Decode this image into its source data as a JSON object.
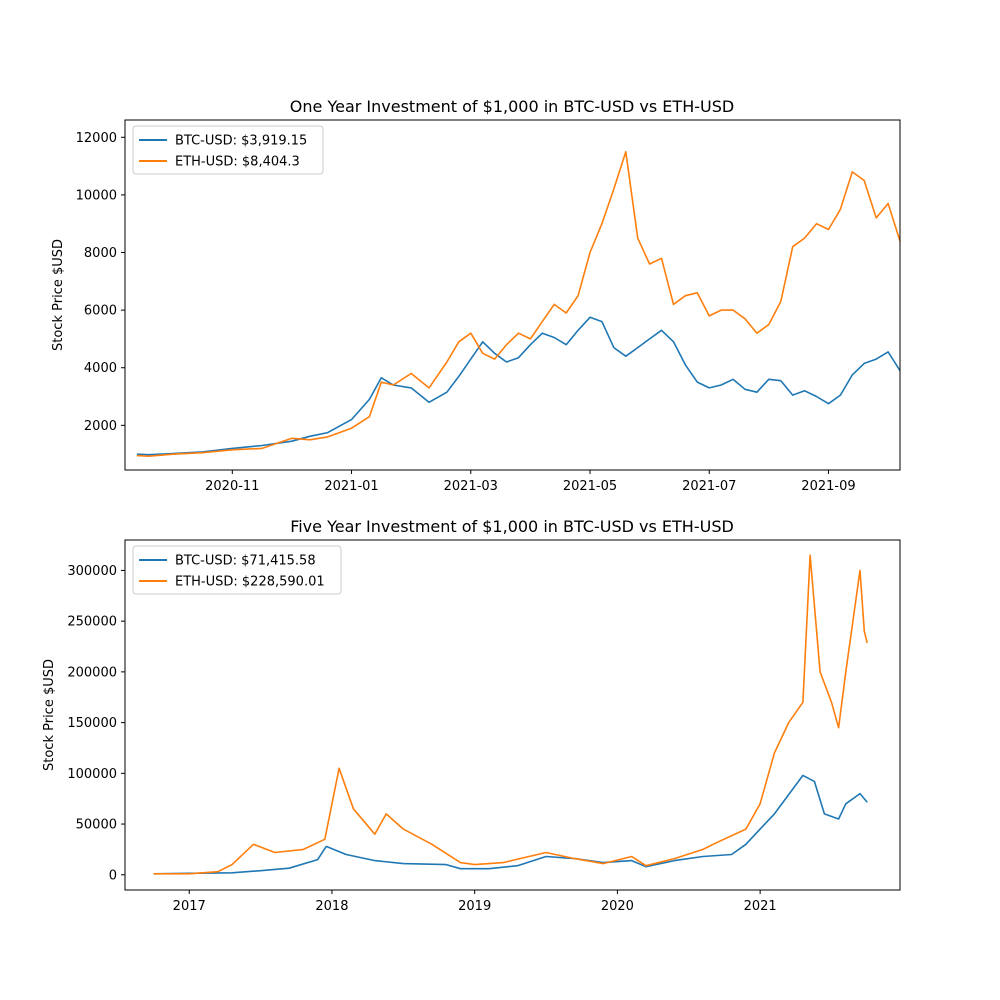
{
  "chart_data": [
    {
      "type": "line",
      "title": "One Year Investment of $1,000 in BTC-USD vs ETH-USD",
      "xlabel": "",
      "ylabel": "Stock Price $USD",
      "x_unit": "months since 2020-10-01",
      "xlim": [
        -0.8,
        12.2
      ],
      "ylim": [
        450,
        12600
      ],
      "grid": false,
      "legend": "top-left",
      "x_ticks": [
        {
          "value": 1,
          "label": "2020-11"
        },
        {
          "value": 3,
          "label": "2021-01"
        },
        {
          "value": 5,
          "label": "2021-03"
        },
        {
          "value": 7,
          "label": "2021-05"
        },
        {
          "value": 9,
          "label": "2021-07"
        },
        {
          "value": 11,
          "label": "2021-09"
        }
      ],
      "y_ticks": [
        {
          "value": 2000,
          "label": "2000"
        },
        {
          "value": 4000,
          "label": "4000"
        },
        {
          "value": 6000,
          "label": "6000"
        },
        {
          "value": 8000,
          "label": "8000"
        },
        {
          "value": 10000,
          "label": "10000"
        },
        {
          "value": 12000,
          "label": "12000"
        }
      ],
      "series": [
        {
          "name": "BTC-USD",
          "legend_label": "BTC-USD: $3,919.15",
          "color": "#1f77b4",
          "points": [
            [
              -0.6,
              1000
            ],
            [
              -0.4,
              980
            ],
            [
              0,
              1020
            ],
            [
              0.5,
              1080
            ],
            [
              1,
              1200
            ],
            [
              1.5,
              1300
            ],
            [
              2,
              1450
            ],
            [
              2.3,
              1620
            ],
            [
              2.6,
              1750
            ],
            [
              3,
              2200
            ],
            [
              3.3,
              2900
            ],
            [
              3.5,
              3650
            ],
            [
              3.7,
              3400
            ],
            [
              4,
              3300
            ],
            [
              4.3,
              2800
            ],
            [
              4.6,
              3150
            ],
            [
              4.8,
              3700
            ],
            [
              5,
              4300
            ],
            [
              5.2,
              4900
            ],
            [
              5.4,
              4500
            ],
            [
              5.6,
              4200
            ],
            [
              5.8,
              4350
            ],
            [
              6,
              4800
            ],
            [
              6.2,
              5200
            ],
            [
              6.4,
              5050
            ],
            [
              6.6,
              4800
            ],
            [
              6.8,
              5300
            ],
            [
              7,
              5750
            ],
            [
              7.2,
              5600
            ],
            [
              7.4,
              4700
            ],
            [
              7.6,
              4400
            ],
            [
              7.8,
              4700
            ],
            [
              8,
              5000
            ],
            [
              8.2,
              5300
            ],
            [
              8.4,
              4900
            ],
            [
              8.6,
              4100
            ],
            [
              8.8,
              3500
            ],
            [
              9,
              3300
            ],
            [
              9.2,
              3400
            ],
            [
              9.4,
              3600
            ],
            [
              9.6,
              3250
            ],
            [
              9.8,
              3150
            ],
            [
              10,
              3600
            ],
            [
              10.2,
              3550
            ],
            [
              10.4,
              3050
            ],
            [
              10.6,
              3200
            ],
            [
              10.8,
              3000
            ],
            [
              11,
              2750
            ],
            [
              11.2,
              3050
            ],
            [
              11.4,
              3750
            ],
            [
              11.6,
              4150
            ],
            [
              11.8,
              4300
            ],
            [
              12,
              4550
            ],
            [
              12.2,
              3900
            ],
            [
              12.4,
              3700
            ],
            [
              12.6,
              3919
            ]
          ]
        },
        {
          "name": "ETH-USD",
          "legend_label": "ETH-USD: $8,404.3",
          "color": "#ff7f0e",
          "points": [
            [
              -0.6,
              950
            ],
            [
              -0.4,
              930
            ],
            [
              0,
              1000
            ],
            [
              0.5,
              1050
            ],
            [
              1,
              1150
            ],
            [
              1.5,
              1200
            ],
            [
              2,
              1550
            ],
            [
              2.3,
              1500
            ],
            [
              2.6,
              1600
            ],
            [
              3,
              1900
            ],
            [
              3.3,
              2300
            ],
            [
              3.5,
              3500
            ],
            [
              3.7,
              3400
            ],
            [
              4,
              3800
            ],
            [
              4.3,
              3300
            ],
            [
              4.6,
              4200
            ],
            [
              4.8,
              4900
            ],
            [
              5,
              5200
            ],
            [
              5.2,
              4500
            ],
            [
              5.4,
              4300
            ],
            [
              5.6,
              4800
            ],
            [
              5.8,
              5200
            ],
            [
              6,
              5000
            ],
            [
              6.2,
              5600
            ],
            [
              6.4,
              6200
            ],
            [
              6.6,
              5900
            ],
            [
              6.8,
              6500
            ],
            [
              7,
              8000
            ],
            [
              7.2,
              9000
            ],
            [
              7.4,
              10200
            ],
            [
              7.6,
              11500
            ],
            [
              7.8,
              8500
            ],
            [
              8,
              7600
            ],
            [
              8.2,
              7800
            ],
            [
              8.4,
              6200
            ],
            [
              8.6,
              6500
            ],
            [
              8.8,
              6600
            ],
            [
              9,
              5800
            ],
            [
              9.2,
              6000
            ],
            [
              9.4,
              6000
            ],
            [
              9.6,
              5700
            ],
            [
              9.8,
              5200
            ],
            [
              10,
              5500
            ],
            [
              10.2,
              6300
            ],
            [
              10.4,
              8200
            ],
            [
              10.6,
              8500
            ],
            [
              10.8,
              9000
            ],
            [
              11,
              8800
            ],
            [
              11.2,
              9500
            ],
            [
              11.4,
              10800
            ],
            [
              11.6,
              10500
            ],
            [
              11.8,
              9200
            ],
            [
              12,
              9700
            ],
            [
              12.2,
              8400
            ],
            [
              12.4,
              8600
            ],
            [
              12.6,
              8404
            ]
          ]
        }
      ]
    },
    {
      "type": "line",
      "title": "Five Year Investment of $1,000 in BTC-USD vs ETH-USD",
      "xlabel": "",
      "ylabel": "Stock Price $USD",
      "x_unit": "years",
      "xlim": [
        2016.55,
        2021.98
      ],
      "ylim": [
        -15000,
        330000
      ],
      "grid": false,
      "legend": "top-left",
      "x_ticks": [
        {
          "value": 2017,
          "label": "2017"
        },
        {
          "value": 2018,
          "label": "2018"
        },
        {
          "value": 2019,
          "label": "2019"
        },
        {
          "value": 2020,
          "label": "2020"
        },
        {
          "value": 2021,
          "label": "2021"
        }
      ],
      "y_ticks": [
        {
          "value": 0,
          "label": "0"
        },
        {
          "value": 50000,
          "label": "50000"
        },
        {
          "value": 100000,
          "label": "100000"
        },
        {
          "value": 150000,
          "label": "150000"
        },
        {
          "value": 200000,
          "label": "200000"
        },
        {
          "value": 250000,
          "label": "250000"
        },
        {
          "value": 300000,
          "label": "300000"
        }
      ],
      "series": [
        {
          "name": "BTC-USD",
          "legend_label": "BTC-USD: $71,415.58",
          "color": "#1f77b4",
          "points": [
            [
              2016.75,
              1000
            ],
            [
              2017,
              1500
            ],
            [
              2017.3,
              2000
            ],
            [
              2017.5,
              4000
            ],
            [
              2017.7,
              6500
            ],
            [
              2017.9,
              15000
            ],
            [
              2017.96,
              28000
            ],
            [
              2018.1,
              20000
            ],
            [
              2018.3,
              14000
            ],
            [
              2018.5,
              11000
            ],
            [
              2018.8,
              10000
            ],
            [
              2018.9,
              6000
            ],
            [
              2019.1,
              6000
            ],
            [
              2019.3,
              9000
            ],
            [
              2019.5,
              18000
            ],
            [
              2019.7,
              16000
            ],
            [
              2019.9,
              12000
            ],
            [
              2020.1,
              14000
            ],
            [
              2020.2,
              8000
            ],
            [
              2020.4,
              14000
            ],
            [
              2020.6,
              18000
            ],
            [
              2020.8,
              20000
            ],
            [
              2020.9,
              30000
            ],
            [
              2021,
              45000
            ],
            [
              2021.1,
              60000
            ],
            [
              2021.3,
              98000
            ],
            [
              2021.38,
              92000
            ],
            [
              2021.45,
              60000
            ],
            [
              2021.55,
              55000
            ],
            [
              2021.6,
              70000
            ],
            [
              2021.7,
              80000
            ],
            [
              2021.75,
              71415
            ]
          ]
        },
        {
          "name": "ETH-USD",
          "legend_label": "ETH-USD: $228,590.01",
          "color": "#ff7f0e",
          "points": [
            [
              2016.75,
              1000
            ],
            [
              2017,
              1000
            ],
            [
              2017.2,
              3000
            ],
            [
              2017.3,
              10000
            ],
            [
              2017.45,
              30000
            ],
            [
              2017.6,
              22000
            ],
            [
              2017.8,
              25000
            ],
            [
              2017.95,
              35000
            ],
            [
              2018.05,
              105000
            ],
            [
              2018.15,
              65000
            ],
            [
              2018.3,
              40000
            ],
            [
              2018.38,
              60000
            ],
            [
              2018.5,
              45000
            ],
            [
              2018.7,
              30000
            ],
            [
              2018.9,
              12000
            ],
            [
              2019,
              10000
            ],
            [
              2019.2,
              12000
            ],
            [
              2019.5,
              22000
            ],
            [
              2019.7,
              16000
            ],
            [
              2019.9,
              11000
            ],
            [
              2020.1,
              18000
            ],
            [
              2020.2,
              9000
            ],
            [
              2020.4,
              16000
            ],
            [
              2020.6,
              25000
            ],
            [
              2020.7,
              32000
            ],
            [
              2020.9,
              45000
            ],
            [
              2021,
              70000
            ],
            [
              2021.1,
              120000
            ],
            [
              2021.2,
              150000
            ],
            [
              2021.3,
              170000
            ],
            [
              2021.35,
              315000
            ],
            [
              2021.42,
              200000
            ],
            [
              2021.5,
              170000
            ],
            [
              2021.55,
              145000
            ],
            [
              2021.6,
              200000
            ],
            [
              2021.65,
              250000
            ],
            [
              2021.7,
              300000
            ],
            [
              2021.73,
              240000
            ],
            [
              2021.75,
              228590
            ]
          ]
        }
      ]
    }
  ]
}
